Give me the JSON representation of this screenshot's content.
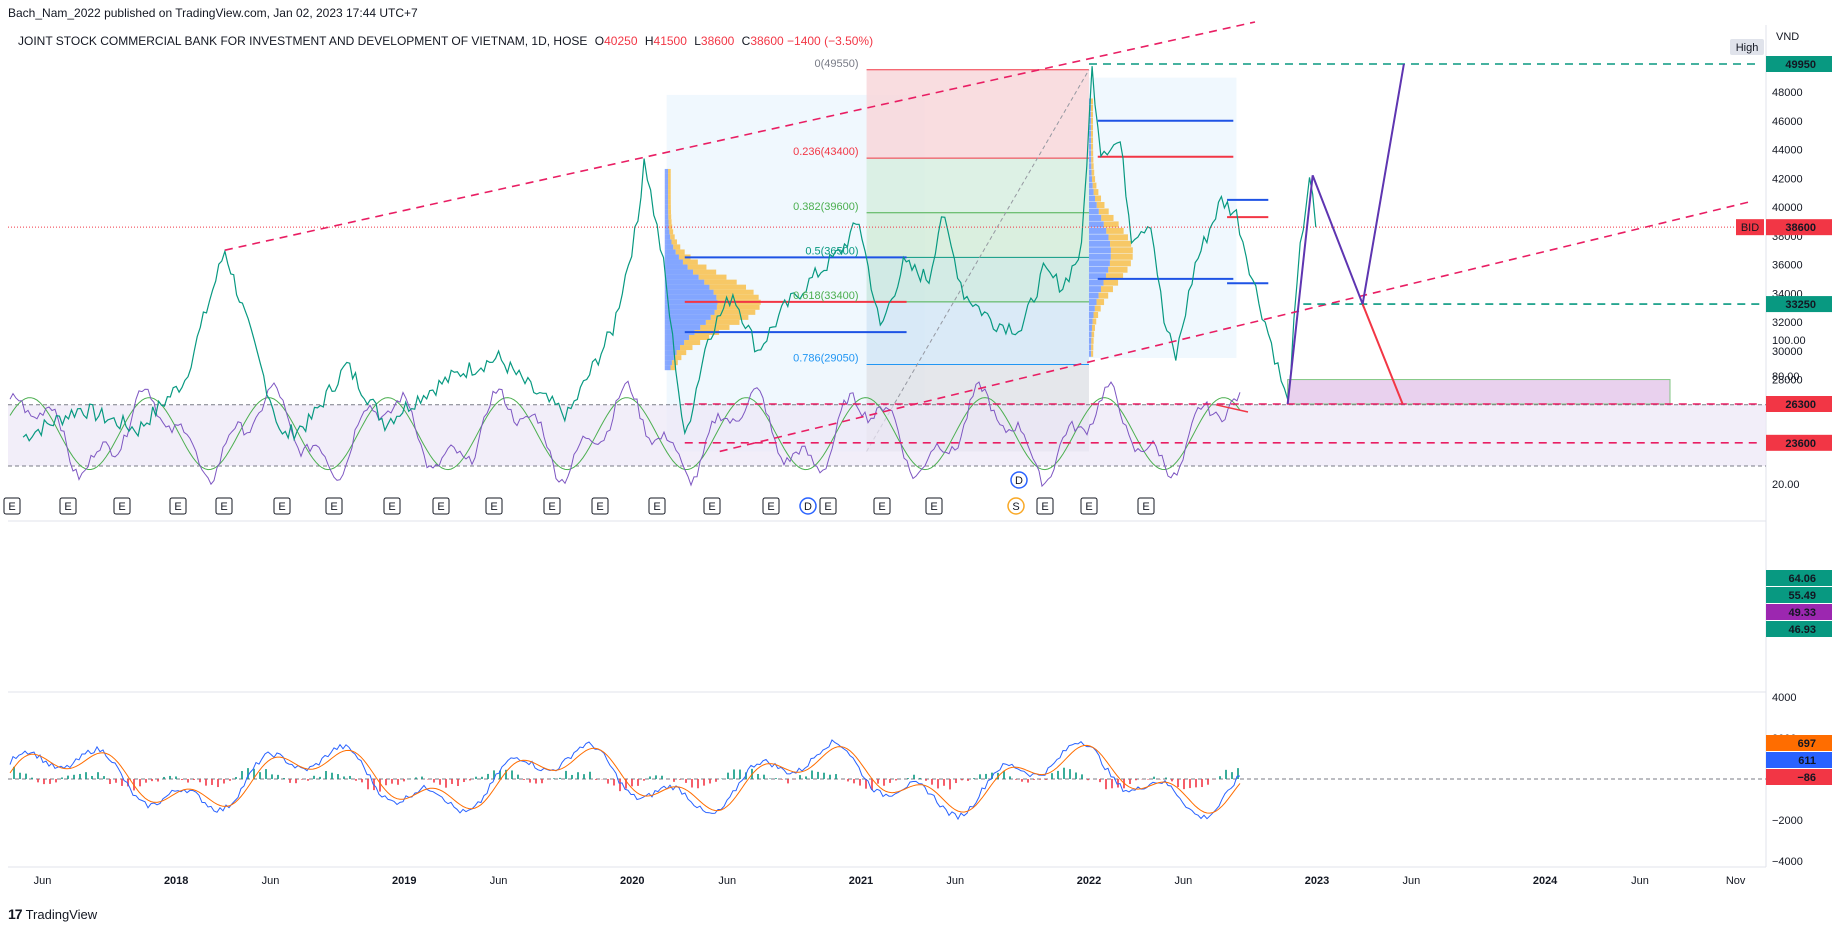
{
  "header": {
    "published": "Bach_Nam_2022 published on TradingView.com, Jan 02, 2023 17:44 UTC+7",
    "symbol": "JOINT STOCK COMMERCIAL BANK FOR INVESTMENT AND DEVELOPMENT OF VIETNAM, 1D, HOSE",
    "ohlc": {
      "o_label": "O",
      "o": "40250",
      "h_label": "H",
      "h": "41500",
      "l_label": "L",
      "l": "38600",
      "c_label": "C",
      "c": "38600",
      "chg": "−1400 (−3.50%)"
    }
  },
  "footer": {
    "brand": "TradingView"
  },
  "chart_data": [
    {
      "type": "line",
      "name": "price",
      "currency": "VND",
      "scale_mode": "High",
      "ylim": [
        23000,
        51000
      ],
      "y_ticks": [
        "48000",
        "46000",
        "44000",
        "42000",
        "40000",
        "38000",
        "36000",
        "34000",
        "32000",
        "30000",
        "28000"
      ],
      "x_ticks": [
        "Jun",
        "2018",
        "Jun",
        "2019",
        "Jun",
        "2020",
        "Jun",
        "2021",
        "Jun",
        "2022",
        "Jun",
        "2023",
        "Jun",
        "2024",
        "Jun",
        "Nov"
      ],
      "price_points": [
        [
          "2017-05-01",
          24000
        ],
        [
          "2017-08-01",
          26000
        ],
        [
          "2017-11-01",
          24500
        ],
        [
          "2018-01-15",
          28000
        ],
        [
          "2018-03-20",
          37000
        ],
        [
          "2018-05-01",
          31000
        ],
        [
          "2018-06-20",
          24000
        ],
        [
          "2018-08-01",
          25000
        ],
        [
          "2018-10-01",
          29000
        ],
        [
          "2018-12-01",
          25000
        ],
        [
          "2019-02-01",
          27000
        ],
        [
          "2019-04-01",
          28500
        ],
        [
          "2019-06-01",
          29500
        ],
        [
          "2019-08-01",
          27000
        ],
        [
          "2019-09-20",
          25500
        ],
        [
          "2019-10-20",
          28000
        ],
        [
          "2019-12-01",
          31500
        ],
        [
          "2020-01-10",
          39000
        ],
        [
          "2020-01-20",
          43500
        ],
        [
          "2020-02-20",
          36000
        ],
        [
          "2020-03-25",
          23800
        ],
        [
          "2020-05-01",
          31000
        ],
        [
          "2020-06-10",
          34000
        ],
        [
          "2020-07-20",
          30000
        ],
        [
          "2020-09-01",
          33000
        ],
        [
          "2020-10-15",
          35000
        ],
        [
          "2020-12-01",
          37000
        ],
        [
          "2020-12-29",
          39000
        ],
        [
          "2021-02-01",
          31500
        ],
        [
          "2021-03-10",
          36000
        ],
        [
          "2021-04-20",
          35000
        ],
        [
          "2021-05-10",
          39500
        ],
        [
          "2021-06-15",
          34000
        ],
        [
          "2021-08-01",
          32000
        ],
        [
          "2021-09-15",
          31500
        ],
        [
          "2021-10-20",
          35500
        ],
        [
          "2021-11-20",
          34500
        ],
        [
          "2021-12-20",
          37000
        ],
        [
          "2022-01-06",
          49550
        ],
        [
          "2022-01-20",
          44000
        ],
        [
          "2022-02-20",
          44500
        ],
        [
          "2022-03-10",
          38000
        ],
        [
          "2022-04-10",
          39000
        ],
        [
          "2022-05-01",
          32000
        ],
        [
          "2022-05-20",
          29500
        ],
        [
          "2022-06-20",
          36000
        ],
        [
          "2022-08-01",
          40500
        ],
        [
          "2022-08-25",
          39500
        ],
        [
          "2022-09-20",
          35000
        ],
        [
          "2022-10-20",
          30500
        ],
        [
          "2022-11-15",
          26300
        ],
        [
          "2022-12-05",
          37000
        ],
        [
          "2022-12-20",
          42200
        ],
        [
          "2022-12-30",
          38600
        ]
      ],
      "labels": {
        "current": "38600",
        "current_tag": "BID",
        "levels": [
          "49950",
          "33250",
          "26300",
          "23600"
        ]
      },
      "fib": {
        "top_label": "0(49550)",
        "levels": [
          {
            "label": "0.236(43400)",
            "price": 43400,
            "color": "#f23645"
          },
          {
            "label": "0.382(39600)",
            "price": 39600,
            "color": "#4caf50"
          },
          {
            "label": "0.5(36500)",
            "price": 36500,
            "color": "#089981"
          },
          {
            "label": "0.618(33400)",
            "price": 33400,
            "color": "#4caf50"
          },
          {
            "label": "0.786(29050)",
            "price": 29050,
            "color": "#2196f3"
          }
        ]
      },
      "projections": {
        "up_target": 49950,
        "pivot_low": 33250,
        "down_target": 26300
      },
      "event_markers": [
        "E",
        "E",
        "E",
        "E",
        "E",
        "E",
        "E",
        "E",
        "E",
        "E",
        "E",
        "E",
        "E",
        "E",
        "E",
        "E",
        "E",
        "E",
        "E",
        "E",
        "E",
        "D",
        "S",
        "D"
      ]
    },
    {
      "type": "line",
      "name": "rsi",
      "ylim": [
        0,
        100
      ],
      "y_ticks": [
        "100.00",
        "80.00",
        "20.00"
      ],
      "values_labels": [
        "64.06",
        "55.49",
        "49.33",
        "46.93"
      ],
      "label_colors": [
        "#089981",
        "#089981",
        "#9c27b0",
        "#089981"
      ]
    },
    {
      "type": "bar",
      "name": "macd",
      "ylim": [
        -4500,
        4500
      ],
      "y_ticks": [
        "4000",
        "2000",
        "−2000",
        "−4000"
      ],
      "values_labels": [
        "697",
        "611",
        "−86"
      ],
      "label_colors": [
        "#ff6d00",
        "#2962ff",
        "#f23645"
      ]
    }
  ],
  "colors": {
    "up": "#089981",
    "down": "#f23645",
    "pink_dash": "#e91e63",
    "green_dash": "#089981",
    "purple": "#7b1fa2",
    "blue": "#1e53e5"
  }
}
